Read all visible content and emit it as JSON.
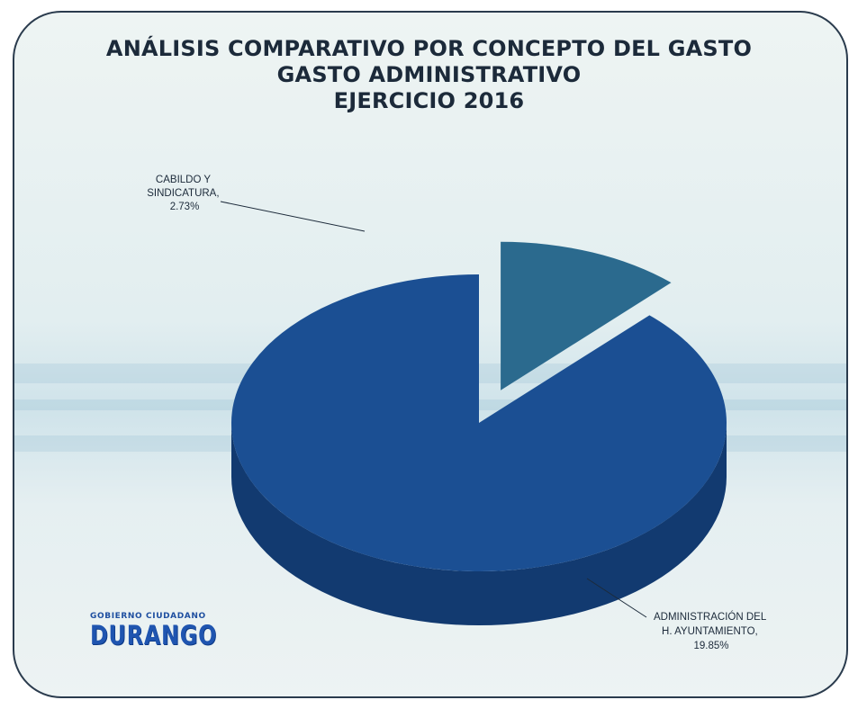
{
  "title_lines": [
    "ANÁLISIS COMPARATIVO POR CONCEPTO DEL GASTO",
    "GASTO ADMINISTRATIVO",
    "EJERCICIO 2016"
  ],
  "chart_data": {
    "type": "pie",
    "style": "3d-exploded",
    "title": "ANÁLISIS COMPARATIVO POR CONCEPTO DEL GASTO GASTO ADMINISTRATIVO EJERCICIO 2016",
    "slices": [
      {
        "label_lines": [
          "CABILDO Y",
          "SINDICATURA,",
          "2.73%"
        ],
        "category": "CABILDO Y SINDICATURA",
        "value": 2.73,
        "value_label": "2.73%",
        "color": "#2b6a8e"
      },
      {
        "label_lines": [
          "ADMINISTRACIÓN DEL",
          "H. AYUNTAMIENTO,",
          "19.85%"
        ],
        "category": "ADMINISTRACIÓN DEL H. AYUNTAMIENTO",
        "value": 19.85,
        "value_label": "19.85%",
        "color": "#1b4f93"
      }
    ],
    "legend": "none",
    "label_placement": "outside-with-leader-lines"
  },
  "logo": {
    "top_text": "GOBIERNO CIUDADANO",
    "main_text": "DURANGO"
  },
  "colors": {
    "frame": "#2a3b4d",
    "title": "#1c2a3a",
    "large_slice_top": "#1b4f93",
    "large_slice_side": "#123a70",
    "small_slice_top": "#2b6a8e",
    "small_slice_side": "#1d4f6a",
    "logo": "#1f55b0"
  }
}
